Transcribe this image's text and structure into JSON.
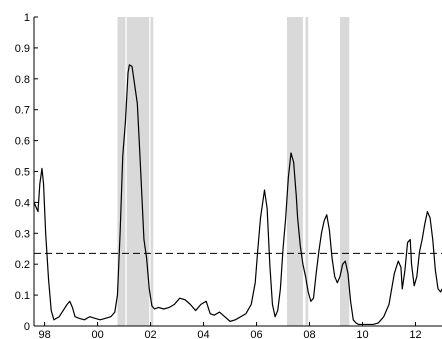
{
  "chart_data": {
    "type": "line",
    "title": "",
    "xlabel": "",
    "ylabel": "",
    "grid": false,
    "legend": "none",
    "xlim": [
      1997.6,
      2013.0
    ],
    "ylim": [
      0,
      1
    ],
    "x_ticks": [
      {
        "value": 1998,
        "label": "98"
      },
      {
        "value": 2000,
        "label": "00"
      },
      {
        "value": 2002,
        "label": "02"
      },
      {
        "value": 2004,
        "label": "04"
      },
      {
        "value": 2006,
        "label": "06"
      },
      {
        "value": 2008,
        "label": "08"
      },
      {
        "value": 2010,
        "label": "10"
      },
      {
        "value": 2012,
        "label": "12"
      }
    ],
    "y_ticks": [
      {
        "value": 0,
        "label": "0"
      },
      {
        "value": 0.1,
        "label": "0.1"
      },
      {
        "value": 0.2,
        "label": "0.2"
      },
      {
        "value": 0.3,
        "label": "0.3"
      },
      {
        "value": 0.4,
        "label": "0.4"
      },
      {
        "value": 0.5,
        "label": "0.5"
      },
      {
        "value": 0.6,
        "label": "0.6"
      },
      {
        "value": 0.7,
        "label": "0.7"
      },
      {
        "value": 0.8,
        "label": "0.8"
      },
      {
        "value": 0.9,
        "label": "0.9"
      },
      {
        "value": 1,
        "label": "1"
      }
    ],
    "shaded_periods": [
      {
        "start": 2000.75,
        "end": 2001.05
      },
      {
        "start": 2001.1,
        "end": 2001.95
      },
      {
        "start": 2002.0,
        "end": 2002.1
      },
      {
        "start": 2007.15,
        "end": 2007.75
      },
      {
        "start": 2007.85,
        "end": 2007.95
      },
      {
        "start": 2009.15,
        "end": 2009.5
      }
    ],
    "threshold": 0.235,
    "colors": {
      "line": "#000000",
      "band": "#d9d9d9",
      "threshold": "#000000"
    },
    "series": [
      {
        "x": [
          1997.6,
          1997.75,
          1997.82,
          1997.9,
          1997.96,
          1998.04,
          1998.15,
          1998.25,
          1998.35,
          1998.45,
          1998.55,
          1998.7,
          1998.85,
          1998.95,
          1999.05,
          1999.15,
          1999.3,
          1999.5,
          1999.7,
          1999.9,
          2000.1,
          2000.3,
          2000.5,
          2000.65,
          2000.75,
          2000.85,
          2000.95,
          2001.05,
          2001.15,
          2001.2,
          2001.3,
          2001.4,
          2001.5,
          2001.6,
          2001.75,
          2001.85,
          2001.95,
          2002.05,
          2002.15,
          2002.3,
          2002.5,
          2002.7,
          2002.9,
          2003.1,
          2003.3,
          2003.5,
          2003.7,
          2003.9,
          2004.1,
          2004.25,
          2004.4,
          2004.6,
          2004.8,
          2005.0,
          2005.2,
          2005.4,
          2005.6,
          2005.8,
          2005.95,
          2006.05,
          2006.15,
          2006.25,
          2006.3,
          2006.4,
          2006.5,
          2006.6,
          2006.7,
          2006.8,
          2006.9,
          2007.0,
          2007.1,
          2007.2,
          2007.3,
          2007.4,
          2007.5,
          2007.55,
          2007.65,
          2007.75,
          2007.85,
          2007.95,
          2008.05,
          2008.15,
          2008.25,
          2008.35,
          2008.45,
          2008.55,
          2008.65,
          2008.75,
          2008.85,
          2008.95,
          2009.05,
          2009.15,
          2009.25,
          2009.35,
          2009.45,
          2009.55,
          2009.65,
          2009.75,
          2009.85,
          2009.95,
          2010.05,
          2010.2,
          2010.4,
          2010.6,
          2010.8,
          2011.0,
          2011.2,
          2011.35,
          2011.45,
          2011.5,
          2011.6,
          2011.7,
          2011.8,
          2011.85,
          2011.95,
          2012.05,
          2012.15,
          2012.25,
          2012.35,
          2012.45,
          2012.55,
          2012.65,
          2012.75,
          2012.85,
          2012.95,
          2013.0
        ],
        "values": [
          0.4,
          0.37,
          0.46,
          0.51,
          0.46,
          0.3,
          0.15,
          0.05,
          0.02,
          0.025,
          0.03,
          0.05,
          0.07,
          0.08,
          0.06,
          0.03,
          0.025,
          0.02,
          0.03,
          0.025,
          0.02,
          0.025,
          0.03,
          0.045,
          0.1,
          0.3,
          0.55,
          0.66,
          0.82,
          0.845,
          0.84,
          0.78,
          0.72,
          0.55,
          0.28,
          0.22,
          0.12,
          0.065,
          0.055,
          0.06,
          0.055,
          0.06,
          0.07,
          0.09,
          0.085,
          0.07,
          0.05,
          0.07,
          0.08,
          0.04,
          0.035,
          0.045,
          0.03,
          0.015,
          0.02,
          0.03,
          0.04,
          0.07,
          0.14,
          0.25,
          0.35,
          0.41,
          0.44,
          0.38,
          0.2,
          0.07,
          0.03,
          0.05,
          0.12,
          0.25,
          0.35,
          0.48,
          0.56,
          0.53,
          0.42,
          0.35,
          0.26,
          0.2,
          0.16,
          0.11,
          0.08,
          0.09,
          0.17,
          0.24,
          0.3,
          0.34,
          0.36,
          0.31,
          0.22,
          0.16,
          0.14,
          0.16,
          0.2,
          0.21,
          0.17,
          0.08,
          0.02,
          0.01,
          0.005,
          0.005,
          0.005,
          0.005,
          0.005,
          0.01,
          0.03,
          0.07,
          0.17,
          0.21,
          0.19,
          0.12,
          0.18,
          0.27,
          0.28,
          0.2,
          0.13,
          0.16,
          0.24,
          0.28,
          0.33,
          0.37,
          0.35,
          0.28,
          0.18,
          0.12,
          0.11,
          0.12
        ]
      }
    ]
  }
}
